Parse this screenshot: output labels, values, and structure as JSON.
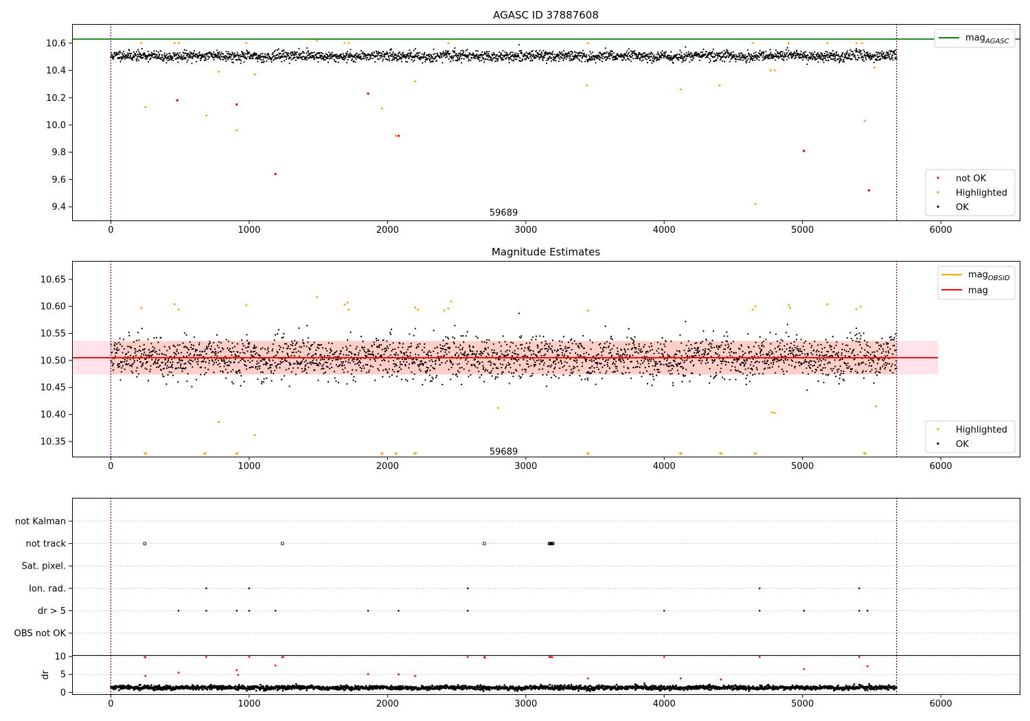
{
  "figure": {
    "width": 1500,
    "height": 1050
  },
  "colors": {
    "ok": "#000000",
    "highlighted": "#ffa500",
    "not_ok": "#ff0000",
    "mag_agasc": "#008000",
    "mag": "#ff0000",
    "mag_obsid": "#ffa500",
    "band": "#ffc0cb",
    "vline": "#800080"
  },
  "chart_data": [
    {
      "type": "scatter",
      "title": "AGASC ID 37887608",
      "xlim": [
        -280,
        6570
      ],
      "ylim": [
        9.3,
        10.74
      ],
      "x_ticks": [
        0,
        1000,
        2000,
        3000,
        4000,
        5000,
        6000
      ],
      "y_ticks": [
        9.4,
        9.6,
        9.8,
        10.0,
        10.2,
        10.4,
        10.6
      ],
      "y_tick_labels": [
        "9.4",
        "9.6",
        "9.8",
        "10.0",
        "10.2",
        "10.4",
        "10.6"
      ],
      "vlines": [
        0,
        5680
      ],
      "annotation": {
        "text": "59689",
        "x": 2840,
        "y": 9.36
      },
      "hline": {
        "name": "mag_AGASC",
        "label_main": "mag",
        "label_sub": "AGASC",
        "y": 10.63
      },
      "ok_series": {
        "name": "OK",
        "x_start": 0,
        "x_end": 5680,
        "count": 2600,
        "baseline": 10.505,
        "noise": 0.022,
        "y_min": 10.4,
        "y_max": 10.6
      },
      "highlighted": {
        "name": "Highlighted",
        "points": [
          [
            220,
            10.6
          ],
          [
            250,
            10.13
          ],
          [
            460,
            10.6
          ],
          [
            490,
            10.6
          ],
          [
            690,
            10.07
          ],
          [
            780,
            10.39
          ],
          [
            910,
            9.96
          ],
          [
            980,
            10.6
          ],
          [
            1040,
            10.37
          ],
          [
            1490,
            10.62
          ],
          [
            1690,
            10.6
          ],
          [
            1720,
            10.6
          ],
          [
            1960,
            10.12
          ],
          [
            2060,
            9.92
          ],
          [
            2200,
            10.32
          ],
          [
            2440,
            10.6
          ],
          [
            3440,
            10.29
          ],
          [
            3450,
            10.6
          ],
          [
            4120,
            10.26
          ],
          [
            4400,
            10.29
          ],
          [
            4640,
            10.6
          ],
          [
            4660,
            9.42
          ],
          [
            4770,
            10.4
          ],
          [
            4800,
            10.4
          ],
          [
            4900,
            10.6
          ],
          [
            5180,
            10.6
          ],
          [
            5390,
            10.6
          ],
          [
            5430,
            10.6
          ],
          [
            5450,
            10.03
          ],
          [
            5520,
            10.42
          ]
        ]
      },
      "not_ok": {
        "name": "not OK",
        "points": [
          [
            480,
            10.18
          ],
          [
            910,
            10.15
          ],
          [
            1190,
            9.64
          ],
          [
            1860,
            10.23
          ],
          [
            2080,
            9.92
          ],
          [
            5010,
            9.81
          ],
          [
            5480,
            9.52
          ]
        ]
      },
      "legends": {
        "top": [
          "mag_AGASC"
        ],
        "bottom": [
          "not OK",
          "Highlighted",
          "OK"
        ]
      }
    },
    {
      "type": "scatter",
      "title": "Magnitude Estimates",
      "xlim": [
        -280,
        6570
      ],
      "ylim": [
        10.322,
        10.684
      ],
      "x_ticks": [
        0,
        1000,
        2000,
        3000,
        4000,
        5000,
        6000
      ],
      "y_ticks": [
        10.35,
        10.4,
        10.45,
        10.5,
        10.55,
        10.6,
        10.65
      ],
      "y_tick_labels": [
        "10.35",
        "10.40",
        "10.45",
        "10.50",
        "10.55",
        "10.60",
        "10.65"
      ],
      "vlines": [
        0,
        5680
      ],
      "annotation": {
        "text": "59689",
        "x": 2840,
        "y": 10.332
      },
      "mag": {
        "name": "mag",
        "y": 10.505,
        "x_start": -280,
        "x_end": 5980
      },
      "mag_band": {
        "y_low": 10.474,
        "y_high": 10.536
      },
      "mag_obsid": {
        "name": "mag_OBSID",
        "label_main": "mag",
        "label_sub": "OBSID",
        "y": 10.505,
        "x_start": 0,
        "x_end": 5680
      },
      "ok_series": {
        "name": "OK",
        "x_start": 0,
        "x_end": 5680,
        "count": 2600,
        "baseline": 10.505,
        "noise": 0.022,
        "y_min": 10.41,
        "y_max": 10.6
      },
      "highlighted": {
        "name": "Highlighted",
        "points": [
          [
            220,
            10.597
          ],
          [
            460,
            10.604
          ],
          [
            490,
            10.594
          ],
          [
            980,
            10.602
          ],
          [
            780,
            10.386
          ],
          [
            1040,
            10.362
          ],
          [
            1490,
            10.617
          ],
          [
            1690,
            10.603
          ],
          [
            1710,
            10.607
          ],
          [
            1720,
            10.594
          ],
          [
            2200,
            10.598
          ],
          [
            2220,
            10.594
          ],
          [
            2410,
            10.592
          ],
          [
            2440,
            10.596
          ],
          [
            2460,
            10.609
          ],
          [
            2800,
            10.412
          ],
          [
            3450,
            10.592
          ],
          [
            4640,
            10.594
          ],
          [
            4660,
            10.6
          ],
          [
            4780,
            10.404
          ],
          [
            4800,
            10.403
          ],
          [
            4900,
            10.602
          ],
          [
            4910,
            10.597
          ],
          [
            5180,
            10.604
          ],
          [
            5390,
            10.595
          ],
          [
            5420,
            10.599
          ],
          [
            5530,
            10.415
          ]
        ]
      },
      "below_range_markers": [
        250,
        680,
        910,
        1960,
        2060,
        2200,
        3450,
        4120,
        4410,
        4660,
        5450
      ],
      "legends": {
        "top": [
          "mag_OBSID",
          "mag"
        ],
        "bottom": [
          "Highlighted",
          "OK"
        ]
      }
    },
    {
      "type": "scatter",
      "title": "",
      "xlim": [
        -280,
        6570
      ],
      "x_ticks": [
        0,
        1000,
        2000,
        3000,
        4000,
        5000,
        6000
      ],
      "vlines": [
        0,
        5680
      ],
      "flag_rows": [
        "OBS not OK",
        "dr > 5",
        "Ion. rad.",
        "Sat. pixel.",
        "not track",
        "not Kalman"
      ],
      "flags": {
        "not track": [
          245,
          1240,
          2700,
          3170,
          3175,
          3180,
          3185,
          3190,
          3195
        ],
        "Ion. rad.": [
          690,
          1000,
          2580,
          4690,
          5410
        ],
        "dr > 5": [
          490,
          690,
          910,
          1000,
          1190,
          1860,
          2080,
          2580,
          4000,
          4690,
          5010,
          5410,
          5470
        ]
      }
    },
    {
      "type": "scatter",
      "title": "",
      "ylabel": "dr",
      "xlim": [
        -280,
        6570
      ],
      "ylim": [
        -0.5,
        10.4
      ],
      "x_ticks": [
        0,
        1000,
        2000,
        3000,
        4000,
        5000,
        6000
      ],
      "y_ticks": [
        0,
        5,
        10
      ],
      "y_tick_labels": [
        "0",
        "5",
        "10"
      ],
      "vlines": [
        0,
        5680
      ],
      "ok_series": {
        "name": "OK",
        "x_start": 0,
        "x_end": 5680,
        "count": 2600,
        "baseline": 1.3,
        "noise": 0.35,
        "y_min": 0.3,
        "y_max": 2.8
      },
      "red_points": [
        [
          245,
          9.9
        ],
        [
          250,
          9.8
        ],
        [
          690,
          9.9
        ],
        [
          1000,
          9.9
        ],
        [
          1240,
          9.8
        ],
        [
          1245,
          9.9
        ],
        [
          2580,
          9.9
        ],
        [
          2700,
          9.9
        ],
        [
          2705,
          9.7
        ],
        [
          3170,
          9.9
        ],
        [
          3180,
          9.9
        ],
        [
          3190,
          9.8
        ],
        [
          4000,
          9.9
        ],
        [
          4690,
          9.9
        ],
        [
          5410,
          9.9
        ],
        [
          250,
          4.6
        ],
        [
          490,
          5.5
        ],
        [
          910,
          6.2
        ],
        [
          920,
          4.9
        ],
        [
          1190,
          7.5
        ],
        [
          1860,
          5.1
        ],
        [
          2080,
          5.0
        ],
        [
          2200,
          4.6
        ],
        [
          3450,
          3.9
        ],
        [
          4120,
          3.9
        ],
        [
          4410,
          3.6
        ],
        [
          5010,
          6.5
        ],
        [
          5470,
          7.3
        ]
      ]
    }
  ]
}
